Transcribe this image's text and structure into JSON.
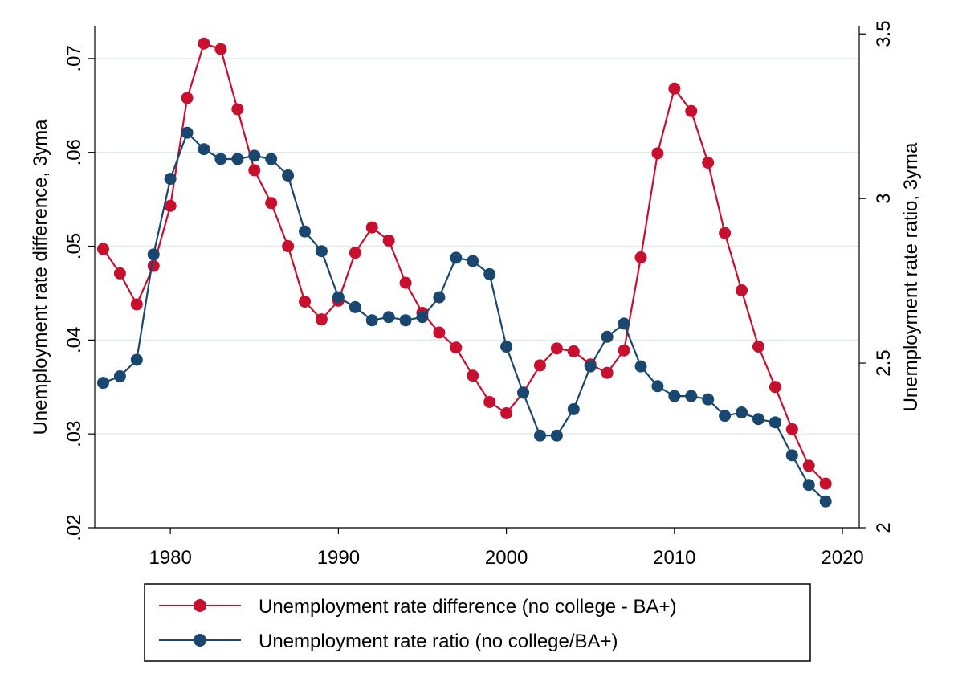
{
  "chart_data": {
    "type": "line",
    "xlabel": "",
    "ylabel_left": "Unemployment rate difference, 3yma",
    "ylabel_right": "Unemployment rate ratio, 3yma",
    "x": [
      1976,
      1977,
      1978,
      1979,
      1980,
      1981,
      1982,
      1983,
      1984,
      1985,
      1986,
      1987,
      1988,
      1989,
      1990,
      1991,
      1992,
      1993,
      1994,
      1995,
      1996,
      1997,
      1998,
      1999,
      2000,
      2001,
      2002,
      2003,
      2004,
      2005,
      2006,
      2007,
      2008,
      2009,
      2010,
      2011,
      2012,
      2013,
      2014,
      2015,
      2016,
      2017,
      2018,
      2019
    ],
    "xlim": [
      1975.5,
      2021
    ],
    "x_ticks": [
      1980,
      1990,
      2000,
      2010,
      2020
    ],
    "x_tick_labels": [
      "1980",
      "1990",
      "2000",
      "2010",
      "2020"
    ],
    "y_left_lim": [
      0.02,
      0.0735
    ],
    "y_left_ticks": [
      0.02,
      0.03,
      0.04,
      0.05,
      0.06,
      0.07
    ],
    "y_left_tick_labels": [
      ".02",
      ".03",
      ".04",
      ".05",
      ".06",
      ".07"
    ],
    "y_right_lim": [
      2.0,
      3.525
    ],
    "y_right_ticks": [
      2,
      2.5,
      3,
      3.5
    ],
    "y_right_tick_labels": [
      "2",
      "2.5",
      "3",
      "3.5"
    ],
    "grid": true,
    "legend_position": "bottom",
    "series": [
      {
        "name": "Unemployment rate difference (no college - BA+)",
        "axis": "left",
        "color": "#c8102e",
        "values": [
          0.0497,
          0.0471,
          0.0438,
          0.0479,
          0.0543,
          0.0658,
          0.0716,
          0.071,
          0.0646,
          0.0581,
          0.0546,
          0.05,
          0.0441,
          0.0422,
          0.0442,
          0.0493,
          0.052,
          0.0506,
          0.0461,
          0.0429,
          0.0408,
          0.0392,
          0.0362,
          0.0334,
          0.0322,
          0.0344,
          0.0373,
          0.0391,
          0.0388,
          0.0374,
          0.0365,
          0.0389,
          0.0488,
          0.0599,
          0.0668,
          0.0644,
          0.0589,
          0.0514,
          0.0453,
          0.0393,
          0.035,
          0.0305,
          0.0266,
          0.0247
        ]
      },
      {
        "name": "Unemployment rate ratio (no college/BA+)",
        "axis": "right",
        "color": "#1a476f",
        "values": [
          2.44,
          2.46,
          2.51,
          2.83,
          3.06,
          3.2,
          3.15,
          3.12,
          3.12,
          3.13,
          3.12,
          3.07,
          2.9,
          2.84,
          2.7,
          2.67,
          2.63,
          2.64,
          2.63,
          2.64,
          2.7,
          2.82,
          2.81,
          2.77,
          2.55,
          2.41,
          2.28,
          2.28,
          2.36,
          2.49,
          2.58,
          2.62,
          2.49,
          2.43,
          2.4,
          2.4,
          2.39,
          2.34,
          2.35,
          2.33,
          2.32,
          2.22,
          2.13,
          2.08
        ]
      }
    ]
  }
}
